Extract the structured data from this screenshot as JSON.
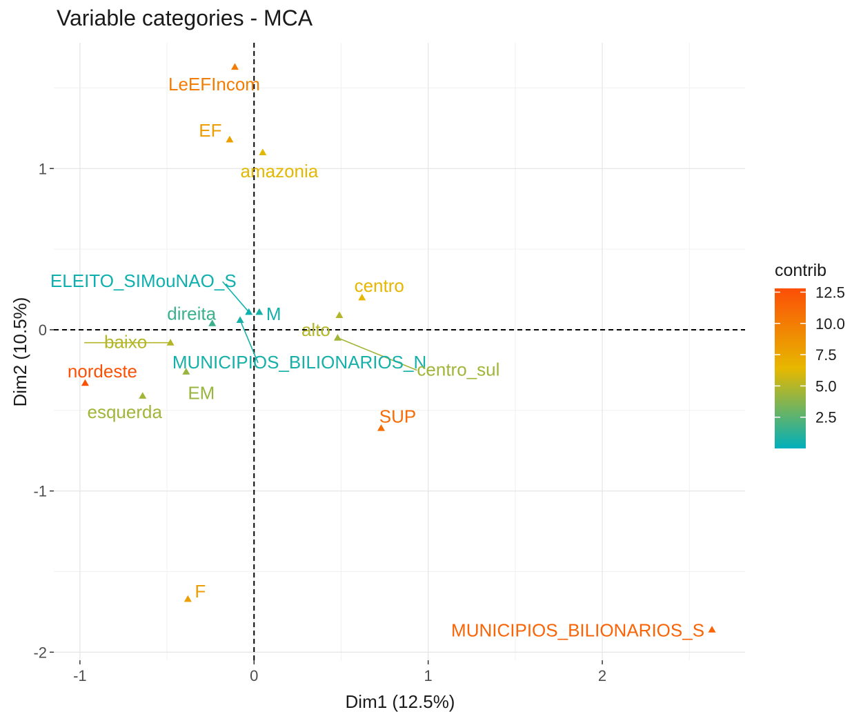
{
  "chart_data": {
    "type": "scatter",
    "title": "Variable categories - MCA",
    "xlabel": "Dim1 (12.5%)",
    "ylabel": "Dim2 (10.5%)",
    "xlim": [
      -1.15,
      2.82
    ],
    "ylim": [
      -2.05,
      1.78
    ],
    "x_ticks": [
      -1,
      0,
      1,
      2
    ],
    "x_tick_labels": [
      "-1",
      "0",
      "1",
      "2"
    ],
    "y_ticks": [
      -2,
      -1,
      0,
      1
    ],
    "y_tick_labels": [
      "-2",
      "-1",
      "0",
      "1"
    ],
    "reference_lines": {
      "x": 0,
      "y": 0,
      "style": "dashed"
    },
    "grid": true,
    "color_scale": {
      "name": "contrib",
      "range": [
        0,
        12.8
      ],
      "breaks": [
        2.5,
        5.0,
        7.5,
        10.0,
        12.5
      ],
      "break_labels": [
        "2.5",
        "5.0",
        "7.5",
        "10.0",
        "12.5"
      ],
      "colors": [
        "#00AFBB",
        "#E7B800",
        "#FC4E07"
      ]
    },
    "legend_position": "right",
    "points": [
      {
        "name": "LeEFIncom",
        "x": -0.11,
        "y": 1.63,
        "contrib": 10.0
      },
      {
        "name": "EF",
        "x": -0.14,
        "y": 1.18,
        "contrib": 8.0
      },
      {
        "name": "amazonia",
        "x": 0.05,
        "y": 1.1,
        "contrib": 6.3
      },
      {
        "name": "centro",
        "x": 0.62,
        "y": 0.2,
        "contrib": 6.5
      },
      {
        "name": "ELEITO_SIMouNAO_S",
        "x": -0.03,
        "y": 0.11,
        "contrib": 0.4
      },
      {
        "name": "M",
        "x": 0.03,
        "y": 0.11,
        "contrib": 0.6
      },
      {
        "name": "direita",
        "x": -0.24,
        "y": 0.04,
        "contrib": 1.6
      },
      {
        "name": "MUNICIPIOS_BILIONARIOS_N",
        "x": -0.08,
        "y": 0.06,
        "contrib": 0.6
      },
      {
        "name": "alto",
        "x": 0.49,
        "y": 0.09,
        "contrib": 5.0
      },
      {
        "name": "centro_sul",
        "x": 0.48,
        "y": -0.05,
        "contrib": 4.5
      },
      {
        "name": "baixo",
        "x": -0.48,
        "y": -0.08,
        "contrib": 5.0
      },
      {
        "name": "EM",
        "x": -0.39,
        "y": -0.26,
        "contrib": 4.2
      },
      {
        "name": "nordeste",
        "x": -0.97,
        "y": -0.33,
        "contrib": 12.6
      },
      {
        "name": "esquerda",
        "x": -0.64,
        "y": -0.41,
        "contrib": 4.5
      },
      {
        "name": "SUP",
        "x": 0.73,
        "y": -0.61,
        "contrib": 11.0
      },
      {
        "name": "F",
        "x": -0.38,
        "y": -1.67,
        "contrib": 8.0
      },
      {
        "name": "MUNICIPIOS_BILIONARIOS_S",
        "x": 2.63,
        "y": -1.86,
        "contrib": 11.5
      }
    ]
  }
}
